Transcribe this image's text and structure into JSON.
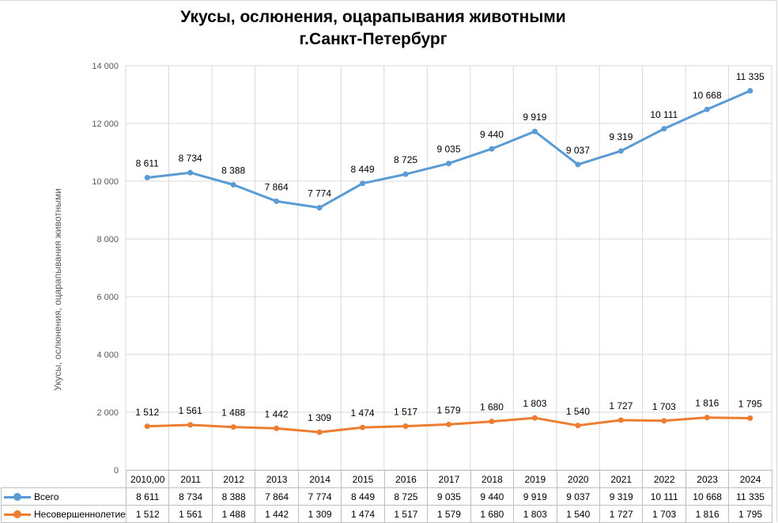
{
  "chart_data": {
    "type": "line",
    "title_lines": [
      "Укусы, ослюнения, оцарапывания животными",
      "г.Санкт-Петербург"
    ],
    "ylabel": "Укусы, ослюнения, оцарапывания животными",
    "ylim": [
      0,
      14000
    ],
    "yticks": [
      0,
      2000,
      4000,
      6000,
      8000,
      10000,
      12000,
      14000
    ],
    "ytick_labels": [
      "0",
      "2 000",
      "4 000",
      "6 000",
      "8 000",
      "10 000",
      "12 000",
      "14 000"
    ],
    "categories": [
      "2010,00",
      "2011",
      "2012",
      "2013",
      "2014",
      "2015",
      "2016",
      "2017",
      "2018",
      "2019",
      "2020",
      "2021",
      "2022",
      "2023",
      "2024"
    ],
    "grid": true,
    "legend": "data-table",
    "series": [
      {
        "name": "Всего",
        "color": "#5b9bd5",
        "values": [
          10123,
          10295,
          9876,
          9306,
          9083,
          9923,
          10242,
          10614,
          11120,
          11722,
          10577,
          11046,
          11814,
          12484,
          13130
        ],
        "labels": [
          "8 611",
          "8 734",
          "8 388",
          "7 864",
          "7 774",
          "8 449",
          "8 725",
          "9 035",
          "9 440",
          "9 919",
          "9 037",
          "9 319",
          "10 111",
          "10 668",
          "11 335"
        ]
      },
      {
        "name": "Несовершеннолетие",
        "color": "#ed7d31",
        "values": [
          1512,
          1561,
          1488,
          1442,
          1309,
          1474,
          1517,
          1579,
          1680,
          1803,
          1540,
          1727,
          1703,
          1816,
          1795
        ],
        "labels": [
          "1 512",
          "1 561",
          "1 488",
          "1 442",
          "1 309",
          "1 474",
          "1 517",
          "1 579",
          "1 680",
          "1 803",
          "1 540",
          "1 727",
          "1 703",
          "1 816",
          "1 795"
        ]
      }
    ]
  }
}
